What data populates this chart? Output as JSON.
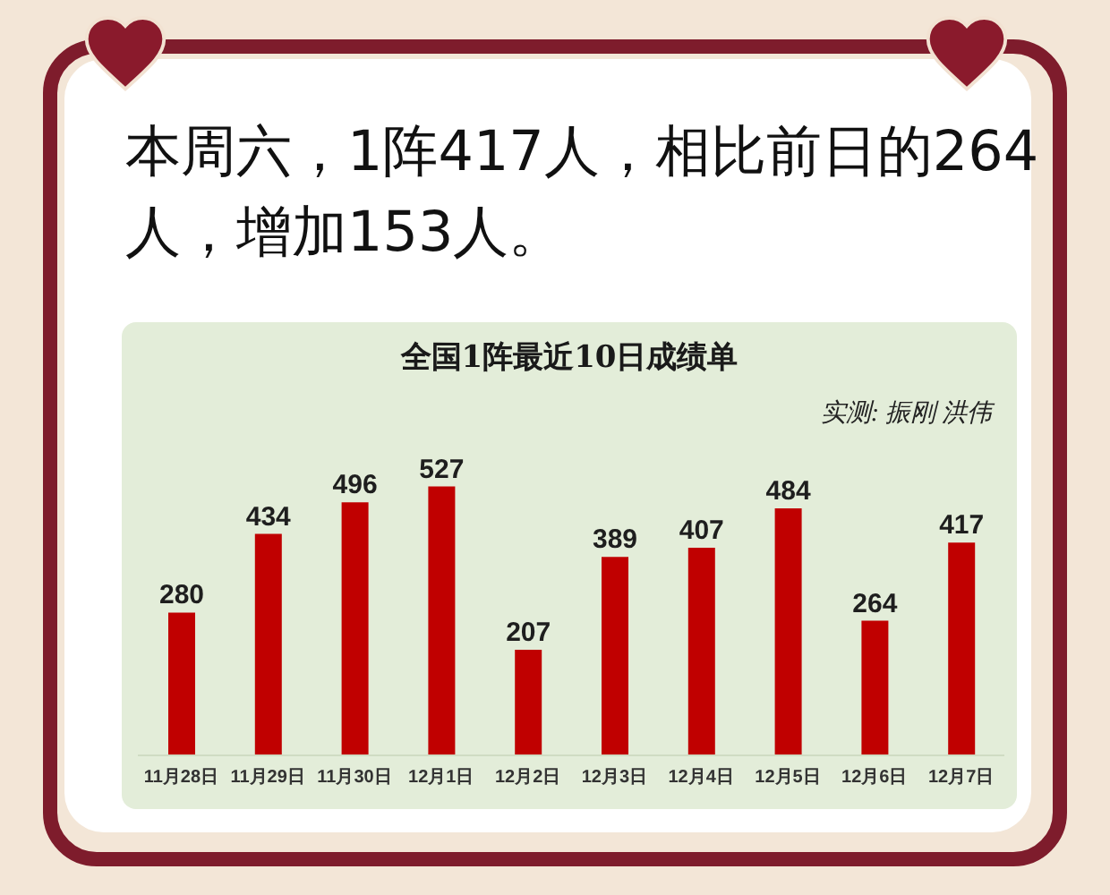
{
  "chart_data": {
    "type": "bar",
    "title": "全国1阵最近10日成绩单",
    "annotations": [
      "本周六，1阵417人，相比前日的264人，增加153人。",
      "实测: 振刚 洪伟"
    ],
    "categories": [
      "11月28日",
      "11月29日",
      "11月30日",
      "12月1日",
      "12月2日",
      "12月3日",
      "12月4日",
      "12月5日",
      "12月6日",
      "12月7日"
    ],
    "values": [
      280,
      434,
      496,
      527,
      207,
      389,
      407,
      484,
      264,
      417
    ],
    "color": "#c00000",
    "tick_labels": "x",
    "data_labels": true
  }
}
